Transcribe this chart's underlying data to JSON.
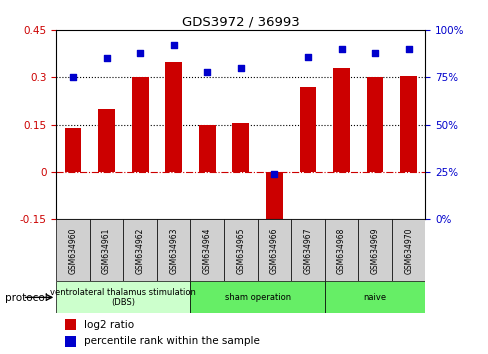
{
  "title": "GDS3972 / 36993",
  "samples": [
    "GSM634960",
    "GSM634961",
    "GSM634962",
    "GSM634963",
    "GSM634964",
    "GSM634965",
    "GSM634966",
    "GSM634967",
    "GSM634968",
    "GSM634969",
    "GSM634970"
  ],
  "log2_ratio": [
    0.14,
    0.2,
    0.3,
    0.35,
    0.15,
    0.155,
    -0.175,
    0.27,
    0.33,
    0.3,
    0.305
  ],
  "percentile_rank": [
    75,
    85,
    88,
    92,
    78,
    80,
    24,
    86,
    90,
    88,
    90
  ],
  "ylim_left": [
    -0.15,
    0.45
  ],
  "ylim_right": [
    0,
    100
  ],
  "yticks_left": [
    -0.15,
    0.0,
    0.15,
    0.3,
    0.45
  ],
  "yticks_right": [
    0,
    25,
    50,
    75,
    100
  ],
  "bar_color": "#cc0000",
  "dot_color": "#0000cc",
  "zero_line_color": "#cc0000",
  "tick_label_color_left": "#cc0000",
  "tick_label_color_right": "#0000cc",
  "legend_bar_label": "log2 ratio",
  "legend_dot_label": "percentile rank within the sample",
  "group_colors": [
    "#ccffcc",
    "#66ee66",
    "#66ee66"
  ],
  "group_ranges": [
    [
      0,
      3
    ],
    [
      4,
      7
    ],
    [
      8,
      10
    ]
  ],
  "group_labels": [
    "ventrolateral thalamus stimulation\n(DBS)",
    "sham operation",
    "naive"
  ],
  "background_color": "#ffffff"
}
